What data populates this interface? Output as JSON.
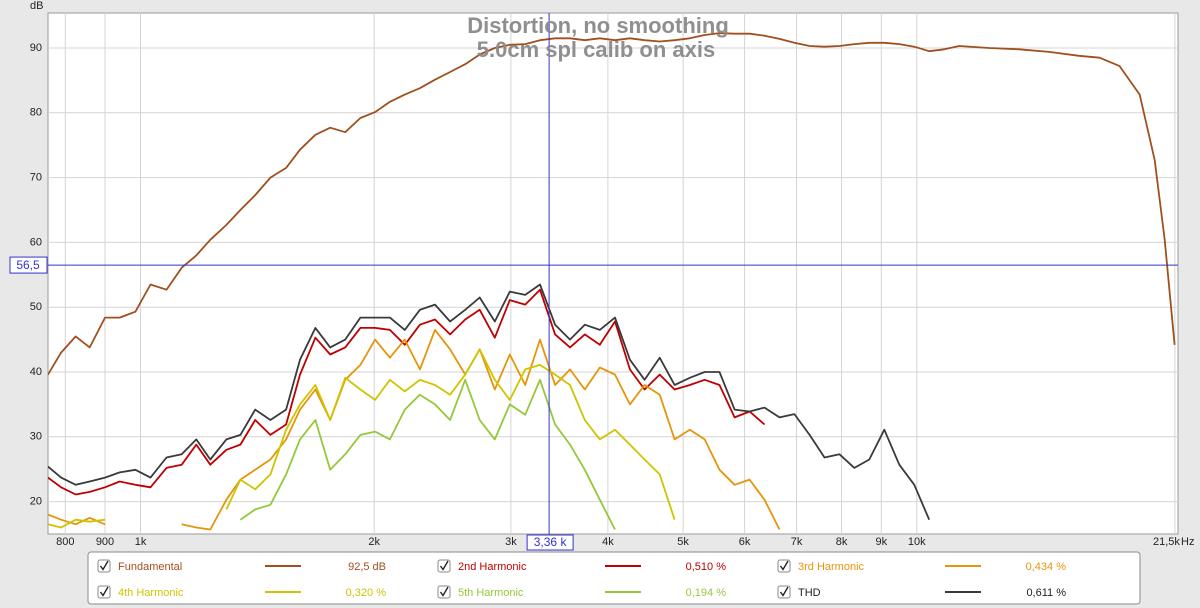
{
  "chart_data": {
    "type": "line",
    "title": "Distortion, no smoothing",
    "subtitle": "5.0cm spl calib on axis",
    "y_label": "dB",
    "x_label": "Hz",
    "log_x": true,
    "grid": true,
    "xlim": [
      760,
      21700
    ],
    "ylim": [
      15,
      95.4
    ],
    "xticks": [
      800,
      900,
      {
        "value": 1000,
        "label": "1k"
      },
      {
        "value": 2000,
        "label": "2k"
      },
      {
        "value": 3000,
        "label": "3k"
      },
      {
        "value": 4000,
        "label": "4k"
      },
      {
        "value": 5000,
        "label": "5k"
      },
      {
        "value": 6000,
        "label": "6k"
      },
      {
        "value": 7000,
        "label": "7k"
      },
      {
        "value": 8000,
        "label": "8k"
      },
      {
        "value": 9000,
        "label": "9k"
      },
      {
        "value": 10000,
        "label": "10k"
      },
      {
        "value": 21500,
        "label": "21,5k"
      }
    ],
    "yticks": [
      20,
      30,
      40,
      50,
      60,
      70,
      80,
      90
    ],
    "cursor": {
      "x": 3360,
      "x_label": "3,36 k",
      "y": 56.5,
      "y_label": "56,5",
      "color": "#3333cc"
    },
    "x": [
      760,
      790,
      825,
      860,
      900,
      940,
      985,
      1030,
      1080,
      1130,
      1180,
      1230,
      1290,
      1345,
      1405,
      1470,
      1540,
      1605,
      1680,
      1755,
      1835,
      1920,
      2005,
      2095,
      2190,
      2290,
      2395,
      2505,
      2620,
      2735,
      2860,
      2990,
      3130,
      3270,
      3420,
      3575,
      3735,
      3905,
      4085,
      4270,
      4460,
      4665,
      4875,
      5100,
      5330,
      5570,
      5825,
      6090,
      6365,
      6655,
      6955,
      7275,
      7605,
      7950,
      8310,
      8685,
      9080,
      9495,
      9925,
      10375,
      10850,
      11340,
      12390,
      13545,
      14800,
      16180,
      17200,
      18250,
      19370,
      20250,
      20860,
      21480
    ],
    "series": [
      {
        "name": "Fundamental",
        "color": "#a0501e",
        "readout": "92,5 dB",
        "values": [
          39.6,
          43,
          45.5,
          43.8,
          48.4,
          48.4,
          49.3,
          53.5,
          52.7,
          56.1,
          58,
          60.4,
          62.7,
          65,
          67.3,
          70,
          71.5,
          74.3,
          76.6,
          77.7,
          77,
          79.2,
          80.1,
          81.7,
          82.8,
          83.8,
          85.1,
          86.3,
          87.5,
          89,
          90,
          90.5,
          90.6,
          91.2,
          91.5,
          91.5,
          91.2,
          91.5,
          91.2,
          91.5,
          91.2,
          91,
          91.2,
          91.5,
          92,
          92.3,
          92.2,
          92.2,
          91.9,
          91.4,
          90.8,
          90.3,
          90.2,
          90.3,
          90.6,
          90.8,
          90.8,
          90.6,
          90.2,
          89.5,
          89.8,
          90.3,
          90,
          89.8,
          89.4,
          88.8,
          88.5,
          87.2,
          82.8,
          72.7,
          60.4,
          44.2
        ]
      },
      {
        "name": "2nd Harmonic",
        "color": "#c00000",
        "readout": "0,510 %",
        "values": [
          23.7,
          22.2,
          21.1,
          21.5,
          22.2,
          23.1,
          22.6,
          22.2,
          25.2,
          25.7,
          28.8,
          25.7,
          28,
          28.8,
          32.6,
          30.3,
          31.9,
          39.6,
          45.3,
          42.7,
          43.8,
          46.8,
          46.8,
          46.5,
          44.2,
          47.3,
          48.1,
          45.8,
          48.1,
          49.6,
          45.3,
          51.1,
          50.4,
          52.7,
          45.8,
          43.8,
          45.8,
          44.2,
          47.8,
          40.4,
          37.3,
          39.6,
          37.3,
          38,
          38.8,
          38,
          33,
          33.9,
          31.9,
          null,
          null,
          null,
          null,
          null,
          null,
          null,
          null,
          null,
          null,
          null,
          null,
          null,
          null,
          null,
          null,
          null,
          null,
          null,
          null,
          null,
          null,
          null
        ]
      },
      {
        "name": "3rd Harmonic",
        "color": "#e6950a",
        "readout": "0,434 %",
        "values": [
          18,
          17.2,
          16.5,
          17.5,
          16.5,
          null,
          null,
          null,
          null,
          16.5,
          16,
          15.7,
          20.3,
          23.4,
          24.9,
          26.5,
          29.6,
          34.2,
          37.3,
          32.6,
          38.8,
          41.1,
          45,
          42.2,
          45,
          40.4,
          46.5,
          43.5,
          39.6,
          43.5,
          37.3,
          42.7,
          38,
          45,
          38,
          40.4,
          37.3,
          40.7,
          39.6,
          35,
          38,
          36.5,
          29.6,
          31.1,
          29.6,
          24.9,
          22.6,
          23.4,
          20.3,
          15.7,
          null,
          null,
          null,
          null,
          null,
          null,
          null,
          null,
          null,
          null,
          null,
          null,
          null,
          null,
          null,
          null,
          null,
          null,
          null,
          null,
          null,
          null
        ]
      },
      {
        "name": "4th Harmonic",
        "color": "#cfc400",
        "readout": "0,320 %",
        "values": [
          16.5,
          16,
          17.2,
          16.9,
          17.2,
          null,
          null,
          null,
          null,
          null,
          null,
          null,
          18.8,
          23.4,
          21.9,
          24.2,
          31.1,
          35,
          38,
          32.6,
          39.1,
          37.3,
          35.7,
          38.8,
          37,
          38.8,
          38,
          36.5,
          39.6,
          43.5,
          38.8,
          35.7,
          40.4,
          41.1,
          39.6,
          38,
          32.6,
          29.6,
          31.1,
          28.8,
          26.5,
          24.2,
          17.2,
          null,
          null,
          null,
          null,
          null,
          null,
          null,
          null,
          null,
          null,
          null,
          null,
          null,
          null,
          null,
          null,
          null,
          null,
          null,
          null,
          null,
          null,
          null,
          null,
          null,
          null,
          null,
          null,
          null
        ]
      },
      {
        "name": "5th Harmonic",
        "color": "#94c83a",
        "readout": "0,194 %",
        "values": [
          null,
          null,
          null,
          null,
          null,
          null,
          null,
          null,
          null,
          null,
          null,
          null,
          null,
          17.2,
          18.8,
          19.5,
          24.2,
          29.6,
          32.6,
          24.9,
          27.3,
          30.3,
          30.8,
          29.6,
          34.2,
          36.5,
          35,
          32.6,
          38.8,
          32.6,
          29.6,
          35,
          33.4,
          38.8,
          31.9,
          28.8,
          24.9,
          20.3,
          15.7,
          null,
          null,
          null,
          null,
          null,
          null,
          null,
          null,
          null,
          null,
          null,
          null,
          null,
          null,
          null,
          null,
          null,
          null,
          null,
          null,
          null,
          null,
          null,
          null,
          null,
          null,
          null,
          null,
          null,
          null,
          null,
          null,
          null
        ]
      },
      {
        "name": "THD",
        "color": "#3a3a3a",
        "readout": "0,611 %",
        "values": [
          25.4,
          23.7,
          22.6,
          23.1,
          23.7,
          24.5,
          24.9,
          23.7,
          26.8,
          27.3,
          29.6,
          26.5,
          29.6,
          30.3,
          34.2,
          32.6,
          34.2,
          41.9,
          46.8,
          43.8,
          45,
          48.4,
          48.4,
          48.4,
          46.5,
          49.6,
          50.4,
          47.8,
          49.6,
          51.5,
          47.8,
          52.4,
          51.9,
          53.5,
          47.3,
          45,
          47.3,
          46.5,
          48.4,
          41.9,
          38.8,
          42.2,
          38,
          39.1,
          40,
          40,
          34.2,
          33.9,
          34.5,
          33,
          33.5,
          30.3,
          26.8,
          27.3,
          25.2,
          26.5,
          31.1,
          25.7,
          22.6,
          17.2,
          null,
          null,
          null,
          null,
          null,
          null,
          null,
          null,
          null,
          null,
          null,
          null
        ]
      }
    ]
  }
}
